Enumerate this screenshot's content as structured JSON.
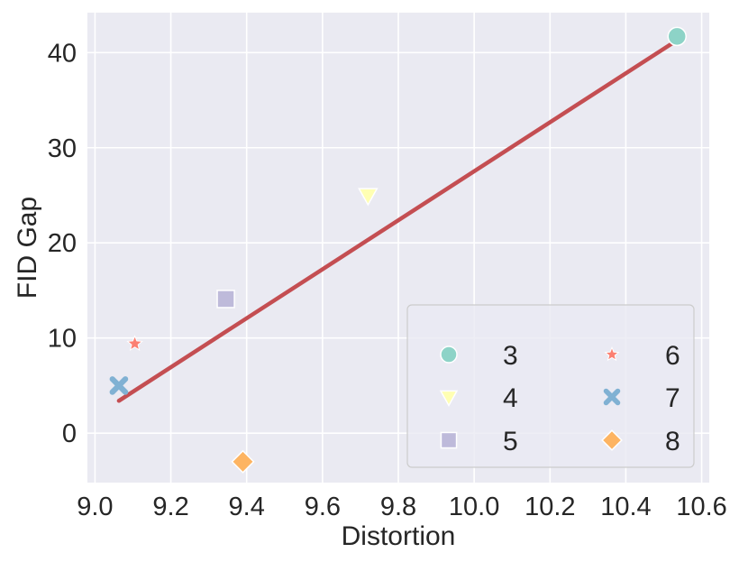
{
  "chart_data": {
    "type": "scatter",
    "title": "",
    "xlabel": "Distortion",
    "ylabel": "FID Gap",
    "xlim": [
      8.98,
      10.62
    ],
    "ylim": [
      -5.2,
      44.2
    ],
    "xticks": [
      9.0,
      9.2,
      9.4,
      9.6,
      9.8,
      10.0,
      10.2,
      10.4,
      10.6
    ],
    "xtick_labels": [
      "9.0",
      "9.2",
      "9.4",
      "9.6",
      "9.8",
      "10.0",
      "10.2",
      "10.4",
      "10.6"
    ],
    "yticks": [
      0,
      10,
      20,
      30,
      40
    ],
    "ytick_labels": [
      "0",
      "10",
      "20",
      "30",
      "40"
    ],
    "grid": true,
    "legend_position": "lower-right",
    "series": [
      {
        "name": "3",
        "marker": "circle",
        "color": "#8dd3c7",
        "x": 10.535,
        "y": 41.7
      },
      {
        "name": "4",
        "marker": "triangle-down",
        "color": "#ffffb3",
        "x": 9.72,
        "y": 25.0
      },
      {
        "name": "5",
        "marker": "square",
        "color": "#bebada",
        "x": 9.345,
        "y": 14.1
      },
      {
        "name": "6",
        "marker": "star",
        "color": "#fb8072",
        "x": 9.105,
        "y": 9.4
      },
      {
        "name": "7",
        "marker": "x",
        "color": "#80b1d3",
        "x": 9.063,
        "y": 5.0
      },
      {
        "name": "8",
        "marker": "diamond",
        "color": "#fdb462",
        "x": 9.39,
        "y": -3.0
      }
    ],
    "fit_line": {
      "color": "#c44e52",
      "x": [
        9.063,
        10.535
      ],
      "y": [
        3.4,
        41.3
      ]
    }
  }
}
